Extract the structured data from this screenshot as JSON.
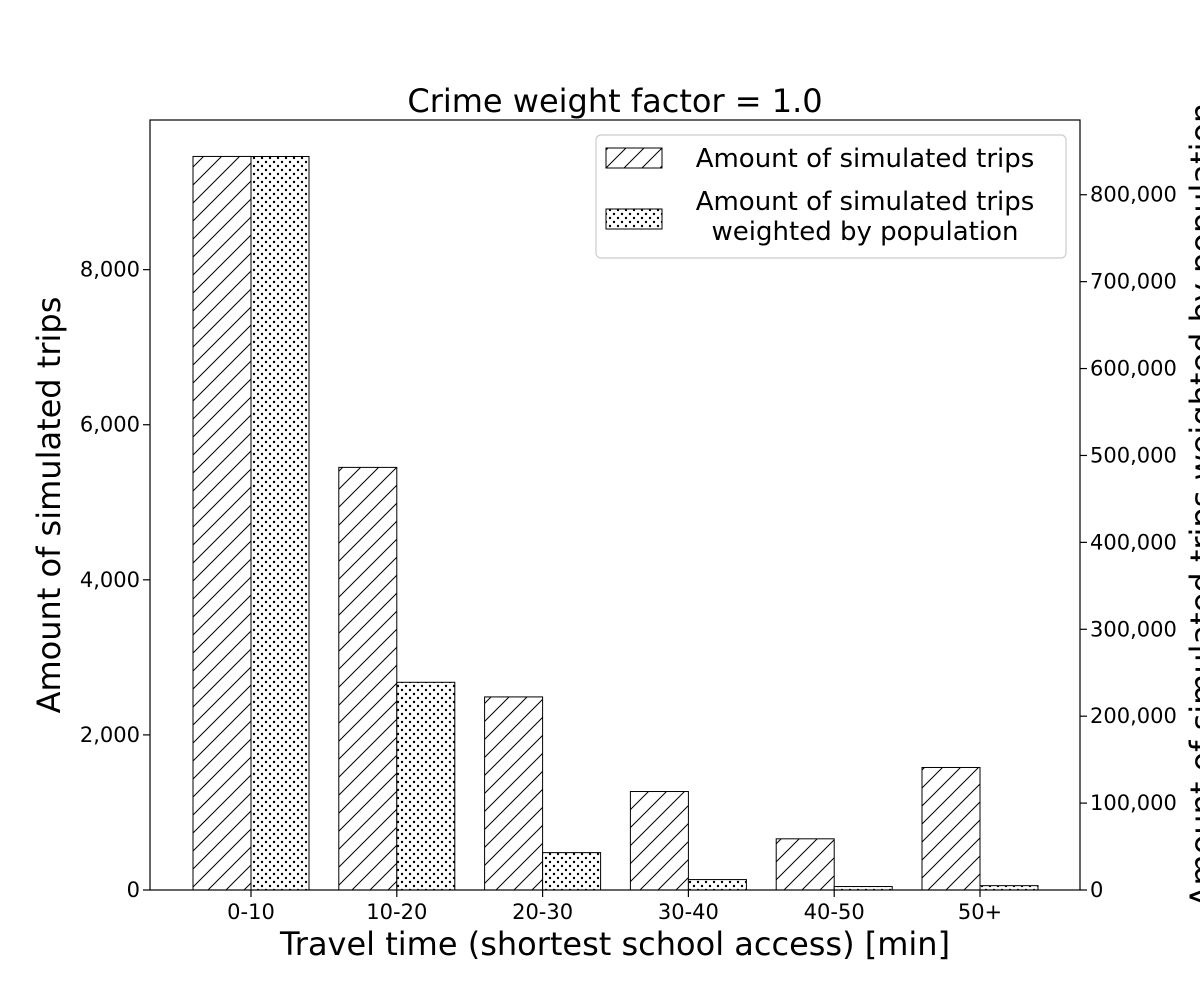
{
  "chart_data": {
    "type": "bar",
    "title": "Crime weight factor = 1.0",
    "xlabel": "Travel time (shortest school access) [min]",
    "ylabel_left": "Amount of simulated trips",
    "ylabel_right": "Amount of simulated trips weighted by population",
    "categories": [
      "0-10",
      "10-20",
      "20-30",
      "30-40",
      "40-50",
      "50+"
    ],
    "ylim_left": [
      0,
      9930
    ],
    "ylim_right": [
      0,
      886000
    ],
    "yticks_left": [
      0,
      2000,
      4000,
      6000,
      8000
    ],
    "ytick_labels_left": [
      "0",
      "2,000",
      "4,000",
      "6,000",
      "8,000"
    ],
    "yticks_right": [
      0,
      100000,
      200000,
      300000,
      400000,
      500000,
      600000,
      700000,
      800000
    ],
    "ytick_labels_right": [
      "0",
      "100,000",
      "200,000",
      "300,000",
      "400,000",
      "500,000",
      "600,000",
      "700,000",
      "800,000"
    ],
    "series": [
      {
        "name": "Amount of simulated trips",
        "axis": "left",
        "pattern": "hatch",
        "values": [
          9460,
          5450,
          2490,
          1270,
          660,
          1580
        ]
      },
      {
        "name": "Amount of simulated trips\nweighted by population",
        "axis": "right",
        "pattern": "dots",
        "values": [
          844000,
          239000,
          43000,
          12000,
          4000,
          5000
        ]
      }
    ],
    "legend_position": "top-right",
    "grid": false
  }
}
